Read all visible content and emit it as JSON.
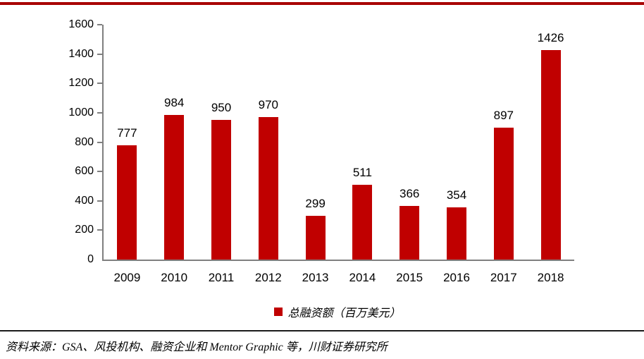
{
  "figure": {
    "top_rule_color": "#A80000",
    "source_note": "资料来源：GSA、风投机构、融资企业和 Mentor Graphic 等，川财证券研究所"
  },
  "chart_data": {
    "type": "bar",
    "categories": [
      "2009",
      "2010",
      "2011",
      "2012",
      "2013",
      "2014",
      "2015",
      "2016",
      "2017",
      "2018"
    ],
    "values": [
      777,
      984,
      950,
      970,
      299,
      511,
      366,
      354,
      897,
      1426
    ],
    "title": "",
    "xlabel": "",
    "ylabel": "",
    "ylim": [
      0,
      1600
    ],
    "yticks": [
      0,
      200,
      400,
      600,
      800,
      1000,
      1200,
      1400,
      1600
    ],
    "grid": false,
    "data_labels": true,
    "bar_color": "#C00000",
    "axis_color": "#7F7F7F",
    "legend": {
      "position": "bottom",
      "marker": "red-square",
      "label": "总融资额（百万美元）"
    }
  }
}
